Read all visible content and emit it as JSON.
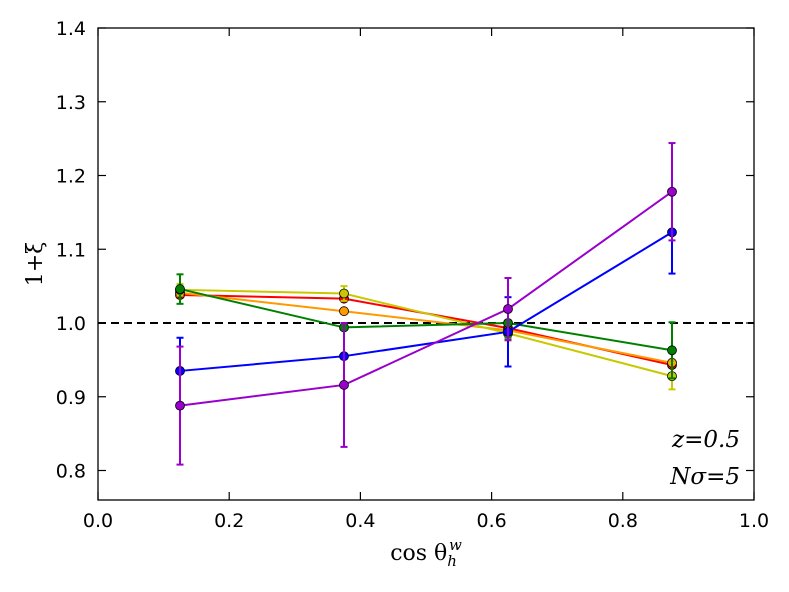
{
  "chart_data": {
    "type": "line",
    "title": "",
    "xlabel": "cos θ",
    "xlabel_sub": "h",
    "xlabel_sup": "w",
    "ylabel": "1+ξ",
    "xlim": [
      0.0,
      1.0
    ],
    "ylim": [
      0.76,
      1.4
    ],
    "xticks": [
      0.0,
      0.2,
      0.4,
      0.6,
      0.8,
      1.0
    ],
    "xtick_labels": [
      "0.0",
      "0.2",
      "0.4",
      "0.6",
      "0.8",
      "1.0"
    ],
    "yticks": [
      0.8,
      0.9,
      1.0,
      1.1,
      1.2,
      1.3,
      1.4
    ],
    "ytick_labels": [
      "0.8",
      "0.9",
      "1.0",
      "1.1",
      "1.2",
      "1.3",
      "1.4"
    ],
    "reference_line": {
      "y": 1.0,
      "style": "dashed",
      "color": "#000000"
    },
    "x": [
      0.125,
      0.375,
      0.625,
      0.875
    ],
    "series": [
      {
        "name": "red",
        "color": "#ff0000",
        "values": [
          1.038,
          1.033,
          0.993,
          0.943
        ],
        "errors": [
          0.0,
          0.0,
          0.0,
          0.0
        ]
      },
      {
        "name": "orange",
        "color": "#ff9900",
        "values": [
          1.041,
          1.016,
          0.99,
          0.946
        ],
        "errors": [
          0.0,
          0.0,
          0.0,
          0.0
        ]
      },
      {
        "name": "yellow",
        "color": "#c8c800",
        "values": [
          1.045,
          1.04,
          0.986,
          0.928
        ],
        "errors": [
          0.008,
          0.01,
          0.01,
          0.018
        ]
      },
      {
        "name": "green",
        "color": "#008000",
        "values": [
          1.046,
          0.994,
          1.0,
          0.963
        ],
        "errors": [
          0.02,
          0.0,
          0.02,
          0.038
        ]
      },
      {
        "name": "blue",
        "color": "#0000ff",
        "values": [
          0.935,
          0.955,
          0.988,
          1.123
        ],
        "errors": [
          0.045,
          0.0,
          0.047,
          0.056
        ]
      },
      {
        "name": "purple",
        "color": "#9900cc",
        "values": [
          0.888,
          0.916,
          1.019,
          1.178
        ],
        "errors": [
          0.08,
          0.084,
          0.042,
          0.066
        ]
      }
    ],
    "annotation_lines": [
      "z=0.5",
      "Nσ=5"
    ],
    "legend": "none",
    "grid": false
  }
}
